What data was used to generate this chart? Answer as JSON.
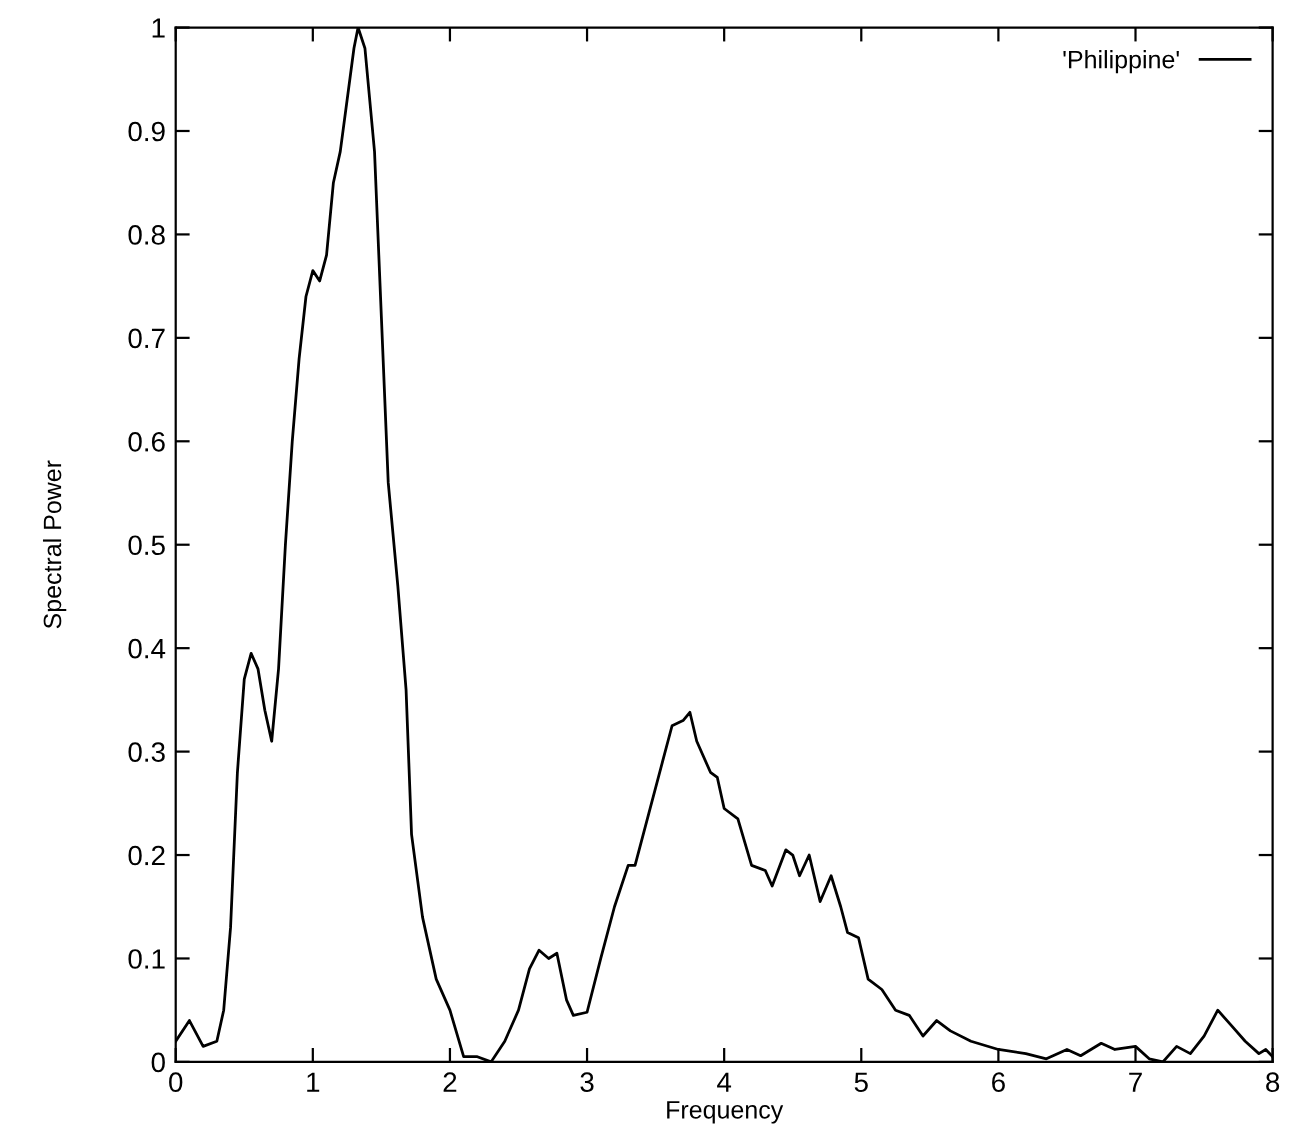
{
  "chart_data": {
    "type": "line",
    "xlabel": "Frequency",
    "ylabel": "Spectral Power",
    "xlim": [
      0,
      8
    ],
    "xticks": [
      0,
      1,
      2,
      3,
      4,
      5,
      6,
      7,
      8
    ],
    "ylim": [
      0,
      1
    ],
    "yticks": [
      0,
      0.1,
      0.2,
      0.3,
      0.4,
      0.5,
      0.6,
      0.7,
      0.8,
      0.9,
      1
    ],
    "grid": false,
    "legend": "top right",
    "marker": "none",
    "line_style": "solid",
    "series": [
      {
        "name": "'Philippine'",
        "color": "#000000",
        "x": [
          0,
          0.1,
          0.2,
          0.3,
          0.35,
          0.4,
          0.45,
          0.5,
          0.55,
          0.6,
          0.65,
          0.7,
          0.75,
          0.8,
          0.85,
          0.9,
          0.95,
          1.0,
          1.05,
          1.1,
          1.15,
          1.2,
          1.25,
          1.3,
          1.33,
          1.38,
          1.45,
          1.5,
          1.55,
          1.62,
          1.68,
          1.72,
          1.8,
          1.9,
          2.0,
          2.1,
          2.2,
          2.3,
          2.4,
          2.5,
          2.58,
          2.65,
          2.72,
          2.78,
          2.85,
          2.9,
          3.0,
          3.1,
          3.2,
          3.3,
          3.35,
          3.45,
          3.55,
          3.62,
          3.7,
          3.75,
          3.8,
          3.9,
          3.95,
          4.0,
          4.1,
          4.2,
          4.3,
          4.35,
          4.45,
          4.5,
          4.55,
          4.62,
          4.7,
          4.78,
          4.85,
          4.9,
          4.98,
          5.05,
          5.15,
          5.25,
          5.35,
          5.45,
          5.55,
          5.65,
          5.8,
          6.0,
          6.2,
          6.35,
          6.5,
          6.6,
          6.75,
          6.85,
          7.0,
          7.1,
          7.2,
          7.3,
          7.4,
          7.5,
          7.6,
          7.7,
          7.8,
          7.9,
          7.95,
          8.0
        ],
        "values": [
          0.02,
          0.04,
          0.015,
          0.02,
          0.05,
          0.13,
          0.28,
          0.37,
          0.395,
          0.38,
          0.34,
          0.31,
          0.38,
          0.5,
          0.6,
          0.68,
          0.74,
          0.765,
          0.755,
          0.78,
          0.85,
          0.88,
          0.93,
          0.98,
          1.0,
          0.98,
          0.88,
          0.72,
          0.56,
          0.46,
          0.36,
          0.22,
          0.14,
          0.08,
          0.05,
          0.005,
          0.005,
          0.0,
          0.02,
          0.05,
          0.09,
          0.108,
          0.1,
          0.105,
          0.06,
          0.045,
          0.048,
          0.1,
          0.15,
          0.19,
          0.19,
          0.24,
          0.29,
          0.325,
          0.33,
          0.338,
          0.31,
          0.28,
          0.275,
          0.245,
          0.235,
          0.19,
          0.185,
          0.17,
          0.205,
          0.2,
          0.18,
          0.2,
          0.155,
          0.18,
          0.15,
          0.125,
          0.12,
          0.08,
          0.07,
          0.05,
          0.045,
          0.025,
          0.04,
          0.03,
          0.02,
          0.012,
          0.008,
          0.003,
          0.012,
          0.006,
          0.018,
          0.012,
          0.015,
          0.003,
          0.0,
          0.015,
          0.008,
          0.025,
          0.05,
          0.035,
          0.02,
          0.008,
          0.012,
          0.005
        ]
      }
    ]
  }
}
